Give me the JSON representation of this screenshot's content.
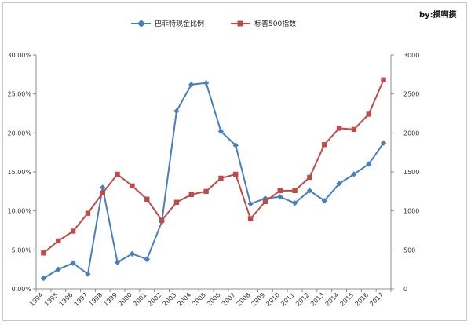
{
  "chart_data": {
    "type": "line",
    "categories": [
      "1994",
      "1995",
      "1996",
      "1997",
      "1998",
      "1999",
      "2000",
      "2001",
      "2002",
      "2003",
      "2004",
      "2005",
      "2006",
      "2007",
      "2008",
      "2009",
      "2010",
      "2011",
      "2012",
      "2013",
      "2014",
      "2015",
      "2016",
      "2017"
    ],
    "series": [
      {
        "name": "巴菲特现金比例",
        "axis": "left",
        "color": "#4a7ebb",
        "marker": "diamond",
        "values": [
          0.0135,
          0.025,
          0.033,
          0.019,
          0.13,
          0.034,
          0.045,
          0.038,
          0.086,
          0.228,
          0.262,
          0.264,
          0.202,
          0.184,
          0.109,
          0.116,
          0.118,
          0.11,
          0.126,
          0.113,
          0.135,
          0.147,
          0.16,
          0.187
        ]
      },
      {
        "name": "标普500指数",
        "axis": "right",
        "color": "#be4b48",
        "marker": "square",
        "values": [
          460,
          615,
          740,
          970,
          1230,
          1470,
          1320,
          1150,
          880,
          1110,
          1210,
          1250,
          1420,
          1470,
          900,
          1120,
          1260,
          1260,
          1430,
          1850,
          2060,
          2045,
          2240,
          2680
        ]
      }
    ],
    "y_left": {
      "range": [
        0,
        0.3
      ],
      "ticks": [
        "0.00%",
        "5.00%",
        "10.00%",
        "15.00%",
        "20.00%",
        "25.00%",
        "30.00%"
      ]
    },
    "y_right": {
      "range": [
        0,
        3000
      ],
      "ticks": [
        "0",
        "500",
        "1000",
        "1500",
        "2000",
        "2500",
        "3000"
      ]
    },
    "grid": false,
    "legend_position": "top",
    "author": "by:摸啊摸"
  }
}
